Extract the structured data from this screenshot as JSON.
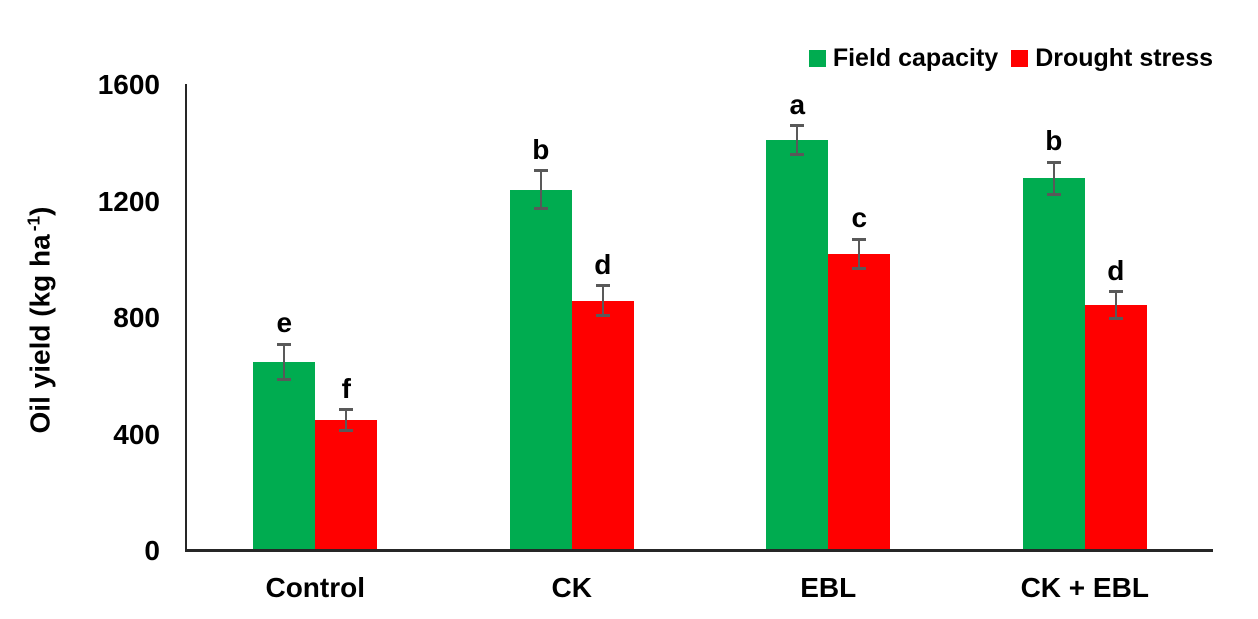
{
  "chart_data": {
    "type": "bar",
    "title": "",
    "xlabel": "",
    "ylabel": {
      "text": "Oil yield (kg ha",
      "superscript": "-1",
      "suffix": ")"
    },
    "categories": [
      "Control",
      "CK",
      "EBL",
      "CK + EBL"
    ],
    "series": [
      {
        "name": "Field capacity",
        "color": "#00AC50",
        "values": [
          650,
          1240,
          1410,
          1280
        ],
        "errors": [
          60,
          65,
          50,
          55
        ],
        "letters": [
          "e",
          "b",
          "a",
          "b"
        ]
      },
      {
        "name": "Drought stress",
        "color": "#FF0000",
        "values": [
          450,
          860,
          1020,
          845
        ],
        "errors": [
          35,
          50,
          50,
          45
        ],
        "letters": [
          "f",
          "d",
          "c",
          "d"
        ]
      }
    ],
    "ylim": [
      0,
      1600
    ],
    "yticks": [
      0,
      400,
      800,
      1200,
      1600
    ],
    "legend_position": "top-right",
    "grid": false,
    "error_bar_color": "#595959",
    "axis_color": "#262626",
    "text_color": "#000000"
  }
}
